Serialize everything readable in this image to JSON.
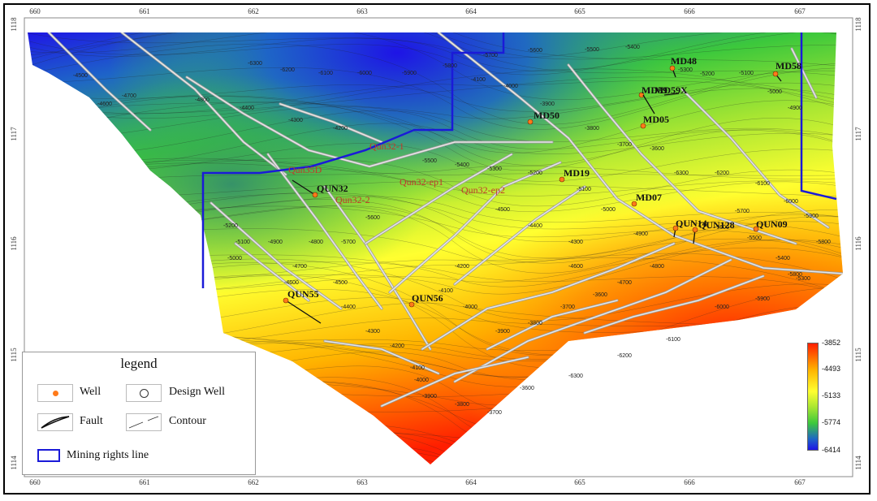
{
  "axes": {
    "x_ticks": [
      "660",
      "661",
      "662",
      "663",
      "664",
      "665",
      "666",
      "667"
    ],
    "y_ticks": [
      "1118",
      "1117",
      "1116",
      "1115",
      "1114"
    ]
  },
  "wells": [
    {
      "name": "MD48",
      "style": "black"
    },
    {
      "name": "MD58",
      "style": "black"
    },
    {
      "name": "MD59",
      "style": "black"
    },
    {
      "name": "MD59X",
      "style": "black"
    },
    {
      "name": "MD05",
      "style": "black"
    },
    {
      "name": "MD50",
      "style": "black"
    },
    {
      "name": "MD19",
      "style": "black"
    },
    {
      "name": "MD07",
      "style": "black"
    },
    {
      "name": "QUN32",
      "style": "black"
    },
    {
      "name": "QUN55",
      "style": "black"
    },
    {
      "name": "QUN56",
      "style": "black"
    },
    {
      "name": "QUN09",
      "style": "black"
    },
    {
      "name": "QUN128",
      "style": "black"
    },
    {
      "name": "QUN14",
      "style": "black"
    }
  ],
  "design_wells": [
    {
      "name": "Qun32-1"
    },
    {
      "name": "Qun35D"
    },
    {
      "name": "Qun32-2"
    },
    {
      "name": "Qun32-ep1"
    },
    {
      "name": "Qun32-ep2"
    }
  ],
  "contour_labels": [
    "-6300",
    "-6200",
    "-6100",
    "-6000",
    "-5900",
    "-5800",
    "-5700",
    "-5600",
    "-5500",
    "-5400",
    "-5300",
    "-5200",
    "-5100",
    "-5000",
    "-4900",
    "-4800",
    "-4700",
    "-4600",
    "-4500",
    "-4400",
    "-4300",
    "-4200",
    "-4100",
    "-4000",
    "-3900",
    "-3800",
    "-3700",
    "-3600"
  ],
  "legend": {
    "title": "legend",
    "well": "Well",
    "design_well": "Design Well",
    "fault": "Fault",
    "contour": "Contour",
    "mining": "Mining rights line"
  },
  "colorbar": {
    "labels": [
      "-3852",
      "-4493",
      "-5133",
      "-5774",
      "-6414"
    ],
    "colors": [
      "#ff1e00",
      "#ffb400",
      "#ffff30",
      "#a8e632",
      "#3cc83c",
      "#1e64c8",
      "#1e14e6"
    ]
  },
  "colors": {
    "mining_line": "#1a1ad8",
    "well_dot": "#ff7a1a",
    "fault": "#b8b8b8"
  }
}
